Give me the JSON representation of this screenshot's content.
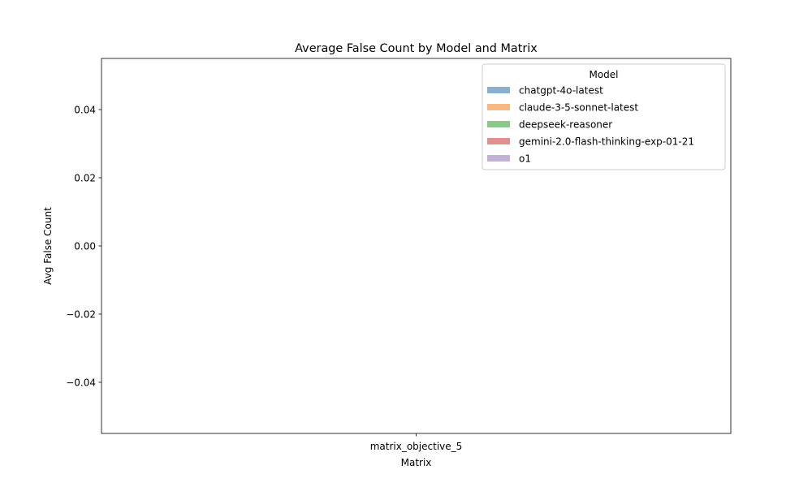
{
  "chart_data": {
    "type": "bar",
    "title": "Average False Count by Model and Matrix",
    "xlabel": "Matrix",
    "ylabel": "Avg False Count",
    "categories": [
      "matrix_objective_5"
    ],
    "series": [
      {
        "name": "chatgpt-4o-latest",
        "values": [
          0
        ],
        "color": "#6a9ec5"
      },
      {
        "name": "claude-3-5-sonnet-latest",
        "values": [
          0
        ],
        "color": "#f5a765"
      },
      {
        "name": "deepseek-reasoner",
        "values": [
          0
        ],
        "color": "#71b96b"
      },
      {
        "name": "gemini-2.0-flash-thinking-exp-01-21",
        "values": [
          0
        ],
        "color": "#d67573"
      },
      {
        "name": "o1",
        "values": [
          0
        ],
        "color": "#b39ccb"
      }
    ],
    "ylim": [
      -0.055,
      0.055
    ],
    "yticks": [
      -0.04,
      -0.02,
      0.0,
      0.02,
      0.04
    ],
    "ytick_labels": [
      "−0.04",
      "−0.02",
      "0.00",
      "0.02",
      "0.04"
    ],
    "legend": {
      "title": "Model",
      "placement": "top-right"
    },
    "grid": false
  }
}
